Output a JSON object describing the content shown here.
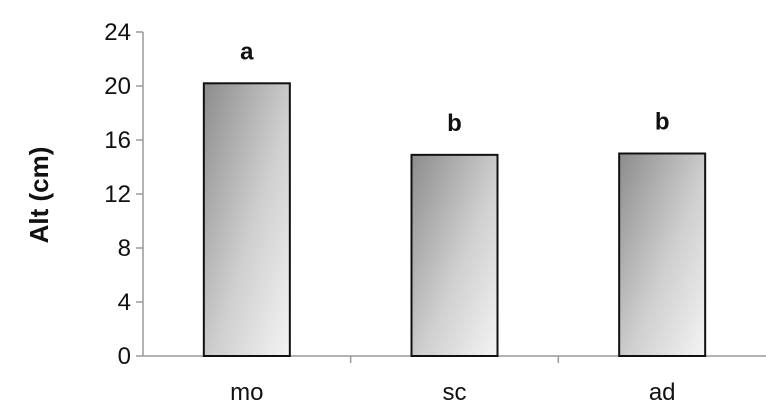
{
  "chart_data": {
    "type": "bar",
    "title": "",
    "xlabel": "",
    "ylabel": "Alt (cm)",
    "categories": [
      "mo",
      "sc",
      "ad"
    ],
    "values": [
      20.2,
      14.9,
      15.0
    ],
    "bar_labels": [
      "a",
      "b",
      "b"
    ],
    "ylim": [
      0,
      24
    ],
    "yticks": [
      "0",
      "4",
      "8",
      "12",
      "16",
      "20",
      "24"
    ],
    "grid": false,
    "legend": "none"
  }
}
